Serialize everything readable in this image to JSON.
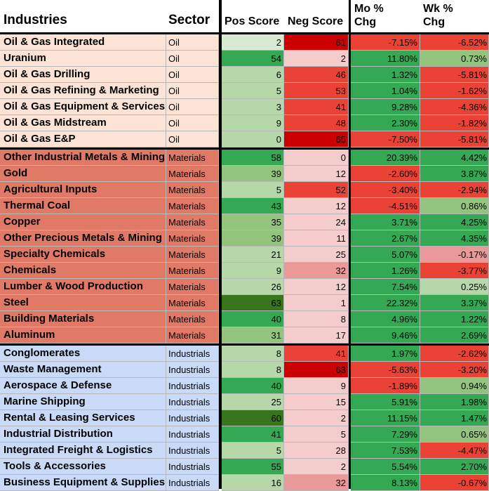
{
  "header": {
    "industries": "Industries",
    "sector": "Sector",
    "pos_score": "Pos Score",
    "neg_score": "Neg Score",
    "mo_chg_line1": "Mo %",
    "mo_chg_line2": "Chg",
    "wk_chg_line1": "Wk %",
    "wk_chg_line2": "Chg"
  },
  "sector_colors": {
    "Oil": "#fbe4d5",
    "Materials": "#e07a66",
    "Industrials": "#c9daf8"
  },
  "rows": [
    {
      "industry": "Oil & Gas Integrated",
      "sector": "Oil",
      "pos": "2",
      "neg": "61",
      "mo": "-7.15%",
      "wk": "-6.52%",
      "pos_color": "#d9ead3",
      "neg_color": "#cc0000",
      "mo_color": "#ea4335",
      "wk_color": "#ea4335"
    },
    {
      "industry": "Uranium",
      "sector": "Oil",
      "pos": "54",
      "neg": "2",
      "mo": "11.80%",
      "wk": "0.73%",
      "pos_color": "#34a853",
      "neg_color": "#f4cccc",
      "mo_color": "#34a853",
      "wk_color": "#93c47d"
    },
    {
      "industry": "Oil & Gas Drilling",
      "sector": "Oil",
      "pos": "6",
      "neg": "46",
      "mo": "1.32%",
      "wk": "-5.81%",
      "pos_color": "#b6d7a8",
      "neg_color": "#ea4335",
      "mo_color": "#34a853",
      "wk_color": "#ea4335"
    },
    {
      "industry": "Oil & Gas Refining & Marketing",
      "sector": "Oil",
      "pos": "5",
      "neg": "53",
      "mo": "1.04%",
      "wk": "-1.62%",
      "pos_color": "#b6d7a8",
      "neg_color": "#ea4335",
      "mo_color": "#34a853",
      "wk_color": "#ea4335"
    },
    {
      "industry": "Oil & Gas Equipment & Services",
      "sector": "Oil",
      "pos": "3",
      "neg": "41",
      "mo": "9.28%",
      "wk": "-4.36%",
      "pos_color": "#b6d7a8",
      "neg_color": "#ea4335",
      "mo_color": "#34a853",
      "wk_color": "#ea4335"
    },
    {
      "industry": "Oil & Gas Midstream",
      "sector": "Oil",
      "pos": "9",
      "neg": "48",
      "mo": "2.30%",
      "wk": "-1.82%",
      "pos_color": "#b6d7a8",
      "neg_color": "#ea4335",
      "mo_color": "#34a853",
      "wk_color": "#ea4335"
    },
    {
      "industry": "Oil & Gas E&P",
      "sector": "Oil",
      "pos": "0",
      "neg": "65",
      "mo": "-7.50%",
      "wk": "-5.81%",
      "pos_color": "#b6d7a8",
      "neg_color": "#cc0000",
      "mo_color": "#ea4335",
      "wk_color": "#ea4335"
    },
    {
      "industry": "Other Industrial Metals & Mining",
      "sector": "Materials",
      "pos": "58",
      "neg": "0",
      "mo": "20.39%",
      "wk": "4.42%",
      "pos_color": "#34a853",
      "neg_color": "#f4cccc",
      "mo_color": "#34a853",
      "wk_color": "#34a853"
    },
    {
      "industry": "Gold",
      "sector": "Materials",
      "pos": "39",
      "neg": "12",
      "mo": "-2.60%",
      "wk": "3.87%",
      "pos_color": "#93c47d",
      "neg_color": "#f4cccc",
      "mo_color": "#ea4335",
      "wk_color": "#34a853"
    },
    {
      "industry": "Agricultural Inputs",
      "sector": "Materials",
      "pos": "5",
      "neg": "52",
      "mo": "-3.40%",
      "wk": "-2.94%",
      "pos_color": "#b6d7a8",
      "neg_color": "#ea4335",
      "mo_color": "#ea4335",
      "wk_color": "#ea4335"
    },
    {
      "industry": "Thermal Coal",
      "sector": "Materials",
      "pos": "43",
      "neg": "12",
      "mo": "-4.51%",
      "wk": "0.86%",
      "pos_color": "#34a853",
      "neg_color": "#f4cccc",
      "mo_color": "#ea4335",
      "wk_color": "#93c47d"
    },
    {
      "industry": "Copper",
      "sector": "Materials",
      "pos": "35",
      "neg": "24",
      "mo": "3.71%",
      "wk": "4.25%",
      "pos_color": "#93c47d",
      "neg_color": "#f4cccc",
      "mo_color": "#34a853",
      "wk_color": "#34a853"
    },
    {
      "industry": "Other Precious Metals & Mining",
      "sector": "Materials",
      "pos": "39",
      "neg": "11",
      "mo": "2.67%",
      "wk": "4.35%",
      "pos_color": "#93c47d",
      "neg_color": "#f4cccc",
      "mo_color": "#34a853",
      "wk_color": "#34a853"
    },
    {
      "industry": "Specialty Chemicals",
      "sector": "Materials",
      "pos": "21",
      "neg": "25",
      "mo": "5.07%",
      "wk": "-0.17%",
      "pos_color": "#b6d7a8",
      "neg_color": "#f4cccc",
      "mo_color": "#34a853",
      "wk_color": "#ea9999"
    },
    {
      "industry": "Chemicals",
      "sector": "Materials",
      "pos": "9",
      "neg": "32",
      "mo": "1.26%",
      "wk": "-3.77%",
      "pos_color": "#b6d7a8",
      "neg_color": "#ea9999",
      "mo_color": "#34a853",
      "wk_color": "#ea4335"
    },
    {
      "industry": "Lumber & Wood Production",
      "sector": "Materials",
      "pos": "26",
      "neg": "12",
      "mo": "7.54%",
      "wk": "0.25%",
      "pos_color": "#b6d7a8",
      "neg_color": "#f4cccc",
      "mo_color": "#34a853",
      "wk_color": "#b6d7a8"
    },
    {
      "industry": "Steel",
      "sector": "Materials",
      "pos": "63",
      "neg": "1",
      "mo": "22.32%",
      "wk": "3.37%",
      "pos_color": "#38761d",
      "neg_color": "#f4cccc",
      "mo_color": "#34a853",
      "wk_color": "#34a853"
    },
    {
      "industry": "Building Materials",
      "sector": "Materials",
      "pos": "40",
      "neg": "8",
      "mo": "4.96%",
      "wk": "1.22%",
      "pos_color": "#34a853",
      "neg_color": "#f4cccc",
      "mo_color": "#34a853",
      "wk_color": "#34a853"
    },
    {
      "industry": "Aluminum",
      "sector": "Materials",
      "pos": "31",
      "neg": "17",
      "mo": "9.46%",
      "wk": "2.69%",
      "pos_color": "#93c47d",
      "neg_color": "#f4cccc",
      "mo_color": "#34a853",
      "wk_color": "#34a853"
    },
    {
      "industry": "Conglomerates",
      "sector": "Industrials",
      "pos": "8",
      "neg": "41",
      "mo": "1.97%",
      "wk": "-2.62%",
      "pos_color": "#b6d7a8",
      "neg_color": "#ea4335",
      "mo_color": "#34a853",
      "wk_color": "#ea4335"
    },
    {
      "industry": "Waste Management",
      "sector": "Industrials",
      "pos": "8",
      "neg": "63",
      "mo": "-5.63%",
      "wk": "-3.20%",
      "pos_color": "#b6d7a8",
      "neg_color": "#cc0000",
      "mo_color": "#ea4335",
      "wk_color": "#ea4335"
    },
    {
      "industry": "Aerospace & Defense",
      "sector": "Industrials",
      "pos": "40",
      "neg": "9",
      "mo": "-1.89%",
      "wk": "0.94%",
      "pos_color": "#34a853",
      "neg_color": "#f4cccc",
      "mo_color": "#ea4335",
      "wk_color": "#93c47d"
    },
    {
      "industry": "Marine Shipping",
      "sector": "Industrials",
      "pos": "25",
      "neg": "15",
      "mo": "5.91%",
      "wk": "1.98%",
      "pos_color": "#b6d7a8",
      "neg_color": "#f4cccc",
      "mo_color": "#34a853",
      "wk_color": "#34a853"
    },
    {
      "industry": "Rental & Leasing Services",
      "sector": "Industrials",
      "pos": "60",
      "neg": "2",
      "mo": "11.15%",
      "wk": "1.47%",
      "pos_color": "#38761d",
      "neg_color": "#f4cccc",
      "mo_color": "#34a853",
      "wk_color": "#34a853"
    },
    {
      "industry": "Industrial Distribution",
      "sector": "Industrials",
      "pos": "41",
      "neg": "5",
      "mo": "7.29%",
      "wk": "0.65%",
      "pos_color": "#34a853",
      "neg_color": "#f4cccc",
      "mo_color": "#34a853",
      "wk_color": "#93c47d"
    },
    {
      "industry": "Integrated Freight & Logistics",
      "sector": "Industrials",
      "pos": "5",
      "neg": "28",
      "mo": "7.53%",
      "wk": "-4.47%",
      "pos_color": "#b6d7a8",
      "neg_color": "#f4cccc",
      "mo_color": "#34a853",
      "wk_color": "#ea4335"
    },
    {
      "industry": "Tools & Accessories",
      "sector": "Industrials",
      "pos": "55",
      "neg": "2",
      "mo": "5.54%",
      "wk": "2.70%",
      "pos_color": "#34a853",
      "neg_color": "#f4cccc",
      "mo_color": "#34a853",
      "wk_color": "#34a853"
    },
    {
      "industry": "Business Equipment & Supplies",
      "sector": "Industrials",
      "pos": "16",
      "neg": "32",
      "mo": "8.13%",
      "wk": "-0.67%",
      "pos_color": "#b6d7a8",
      "neg_color": "#ea9999",
      "mo_color": "#34a853",
      "wk_color": "#ea4335"
    }
  ]
}
